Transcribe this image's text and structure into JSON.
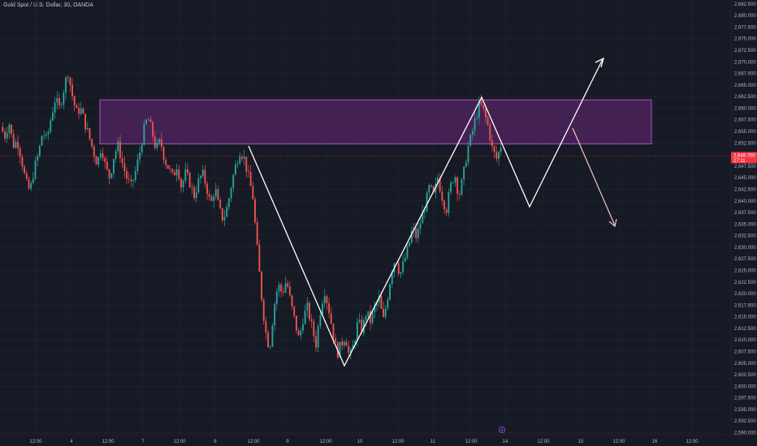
{
  "title": "Gold Spot / U.S. Dollar, 30, OANDA",
  "colors": {
    "background": "#161a25",
    "grid": "#232632",
    "up": "#26a69a",
    "down": "#ef5350",
    "zone_fill": "#7b2a8a",
    "zone_stroke": "#b34fc8",
    "arrow_white": "#ffffff",
    "arrow_pink": "#f4c6c6",
    "price_tag": "#f23645"
  },
  "chart_data": {
    "type": "candlestick",
    "ylim": [
      2587.5,
      2685.0
    ],
    "y_ticks": [
      "2,682.500",
      "2,680.000",
      "2,677.500",
      "2,675.000",
      "2,672.500",
      "2,670.000",
      "2,667.500",
      "2,665.000",
      "2,662.500",
      "2,660.000",
      "2,657.500",
      "2,655.000",
      "2,652.500",
      "2,647.500",
      "2,645.000",
      "2,642.500",
      "2,640.000",
      "2,637.500",
      "2,635.000",
      "2,632.500",
      "2,630.000",
      "2,627.500",
      "2,625.000",
      "2,622.500",
      "2,620.000",
      "2,617.500",
      "2,615.000",
      "2,612.500",
      "2,610.000",
      "2,607.500",
      "2,605.000",
      "2,602.500",
      "2,600.000",
      "2,597.500",
      "2,595.000",
      "2,592.500",
      "2,590.000"
    ],
    "x_ticks": [
      "12:00",
      "4",
      "12:00",
      "7",
      "12:00",
      "8",
      "12:00",
      "9",
      "12:00",
      "10",
      "12:00",
      "11",
      "12:00",
      "14",
      "12:00",
      "15",
      "12:00",
      "16",
      "12:00"
    ],
    "current_price": "2,649.700",
    "countdown": "27:11",
    "zone": {
      "top": 2661.8,
      "bottom": 2652.3
    },
    "projection_white": [
      {
        "date": "8 12:00",
        "price": 2650.0
      },
      {
        "date": "10 06:00",
        "price": 2603.5
      },
      {
        "date": "13 06:00",
        "price": 2662.8
      },
      {
        "date": "14 06:00",
        "price": 2638.5
      },
      {
        "date": "15 18:00",
        "price": 2671.0
      }
    ],
    "projection_pink": [
      {
        "date": "14 18:00",
        "price": 2656.0
      },
      {
        "date": "15 18:00",
        "price": 2634.0
      }
    ],
    "candles_path": [
      2656,
      2654,
      2657,
      2652,
      2653,
      2649,
      2644,
      2642,
      2647,
      2650,
      2655,
      2653,
      2658,
      2662,
      2660,
      2664,
      2668,
      2663,
      2659,
      2660,
      2657,
      2654,
      2651,
      2648,
      2652,
      2647,
      2645,
      2650,
      2652,
      2648,
      2645,
      2643,
      2646,
      2650,
      2655,
      2658,
      2655,
      2651,
      2653,
      2649,
      2647,
      2645,
      2648,
      2643,
      2646,
      2644,
      2641,
      2644,
      2646,
      2643,
      2639,
      2643,
      2638,
      2636,
      2639,
      2644,
      2648,
      2651,
      2649,
      2645,
      2641,
      2630,
      2620,
      2612,
      2608,
      2617,
      2622,
      2620,
      2623,
      2618,
      2614,
      2610,
      2615,
      2617,
      2613,
      2609,
      2616,
      2621,
      2617,
      2612,
      2607,
      2609,
      2611,
      2606,
      2609,
      2614,
      2612,
      2616,
      2614,
      2617,
      2619,
      2614,
      2619,
      2625,
      2628,
      2624,
      2627,
      2630,
      2634,
      2632,
      2636,
      2639,
      2643,
      2641,
      2645,
      2641,
      2638,
      2643,
      2646,
      2641,
      2645,
      2651,
      2654,
      2658,
      2661,
      2659,
      2656,
      2651,
      2649,
      2652
    ],
    "annotation_icon": "lightning-icon"
  }
}
